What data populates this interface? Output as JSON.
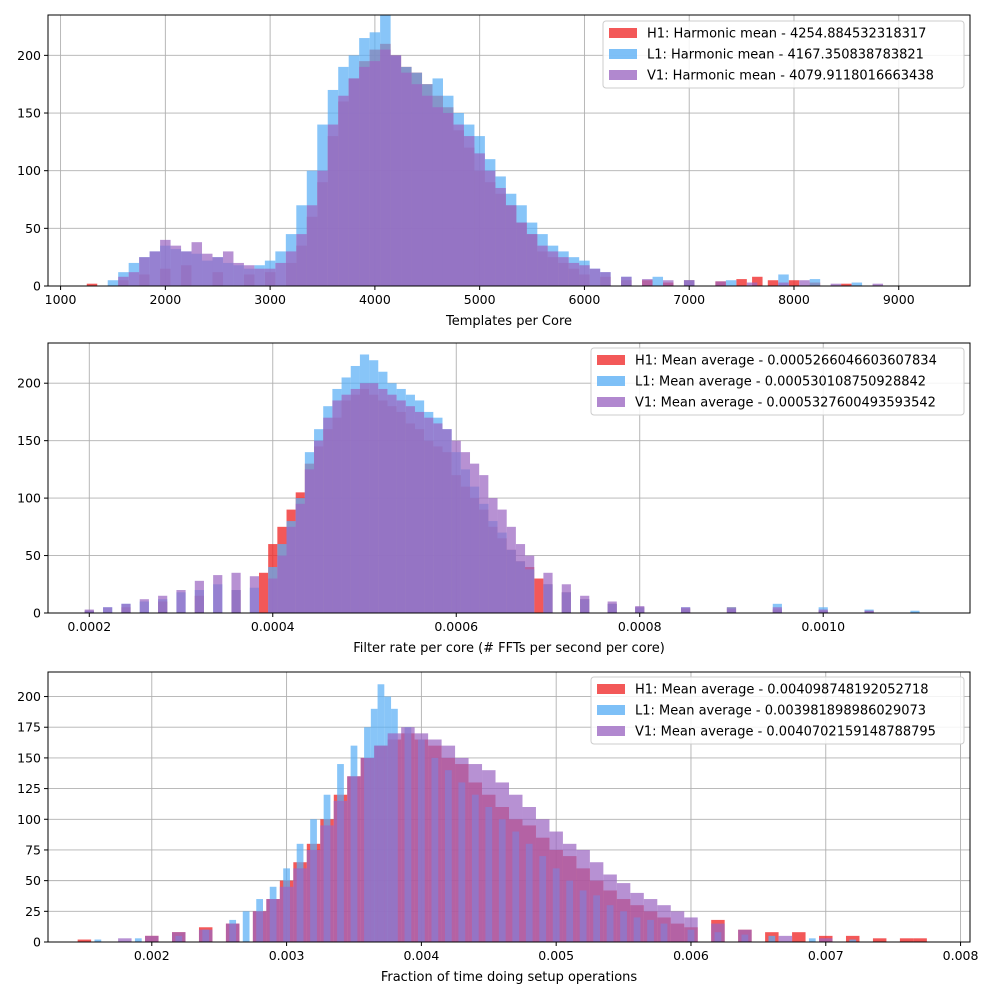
{
  "colors": {
    "H1": "#ef2929",
    "L1": "#5aaef5",
    "V1": "#9b67c2",
    "grid": "#b0b0b0"
  },
  "chart_data": [
    {
      "type": "bar",
      "title": "",
      "xlabel": "Templates per Core",
      "ylabel": "",
      "xlim": [
        880,
        9680
      ],
      "ylim": [
        0,
        235
      ],
      "xticks": [
        1000,
        2000,
        3000,
        4000,
        5000,
        6000,
        7000,
        8000,
        9000
      ],
      "yticks": [
        0,
        50,
        100,
        150,
        200
      ],
      "grid": true,
      "legend_position": "top-right",
      "series": [
        {
          "name": "H1: Harmonic mean  - 4254.884532318317",
          "color": "#ef2929",
          "x": [
            1300,
            1600,
            1800,
            2000,
            2200,
            2500,
            2800,
            3000,
            3200,
            3300,
            3400,
            3500,
            3600,
            3700,
            3800,
            3900,
            4000,
            4100,
            4200,
            4300,
            4400,
            4500,
            4600,
            4700,
            4800,
            4900,
            5000,
            5100,
            5200,
            5300,
            5400,
            5500,
            5600,
            5700,
            5800,
            5900,
            6000,
            6200,
            6400,
            6600,
            6800,
            7000,
            7300,
            7500,
            7650,
            7800,
            8000,
            8200,
            8500
          ],
          "values": [
            2,
            5,
            10,
            15,
            18,
            12,
            10,
            12,
            20,
            35,
            60,
            90,
            130,
            160,
            180,
            195,
            205,
            210,
            200,
            190,
            185,
            175,
            165,
            155,
            135,
            120,
            100,
            90,
            80,
            70,
            55,
            45,
            30,
            25,
            20,
            15,
            10,
            8,
            5,
            5,
            3,
            5,
            4,
            6,
            8,
            5,
            5,
            3,
            2
          ]
        },
        {
          "name": "L1: Harmonic mean  - 4167.350838783821",
          "color": "#5aaef5",
          "x": [
            1500,
            1600,
            1700,
            1800,
            1900,
            2000,
            2100,
            2200,
            2300,
            2400,
            2500,
            2600,
            2700,
            2800,
            2900,
            3000,
            3100,
            3200,
            3300,
            3400,
            3500,
            3600,
            3700,
            3800,
            3900,
            4000,
            4100,
            4200,
            4300,
            4400,
            4500,
            4600,
            4700,
            4800,
            4900,
            5000,
            5100,
            5200,
            5300,
            5400,
            5500,
            5600,
            5700,
            5800,
            5900,
            6000,
            6100,
            6200,
            6400,
            6700,
            7000,
            7400,
            7900,
            8200,
            8600
          ],
          "values": [
            5,
            12,
            20,
            25,
            30,
            35,
            32,
            30,
            28,
            22,
            25,
            20,
            18,
            15,
            18,
            22,
            30,
            45,
            70,
            100,
            140,
            170,
            190,
            200,
            215,
            220,
            235,
            200,
            190,
            185,
            175,
            180,
            165,
            150,
            140,
            130,
            110,
            95,
            80,
            70,
            55,
            45,
            35,
            30,
            25,
            22,
            15,
            12,
            8,
            8,
            5,
            5,
            10,
            6,
            3
          ]
        },
        {
          "name": "V1: Harmonic mean  - 4079.9118016663438",
          "color": "#9b67c2",
          "x": [
            1600,
            1700,
            1800,
            1900,
            2000,
            2100,
            2200,
            2300,
            2400,
            2500,
            2600,
            2700,
            2800,
            2900,
            3000,
            3100,
            3200,
            3300,
            3400,
            3500,
            3600,
            3700,
            3800,
            3900,
            4000,
            4100,
            4200,
            4300,
            4400,
            4500,
            4600,
            4700,
            4800,
            4900,
            5000,
            5100,
            5200,
            5300,
            5400,
            5500,
            5600,
            5700,
            5800,
            5900,
            6000,
            6100,
            6200,
            6400,
            6600,
            6800,
            7000,
            7300,
            7600,
            7900,
            8100,
            8400,
            8800
          ],
          "values": [
            8,
            12,
            25,
            30,
            40,
            35,
            30,
            38,
            28,
            25,
            30,
            20,
            18,
            15,
            15,
            20,
            30,
            45,
            70,
            100,
            140,
            165,
            180,
            190,
            195,
            205,
            200,
            185,
            175,
            165,
            155,
            150,
            140,
            130,
            115,
            100,
            85,
            70,
            55,
            45,
            35,
            30,
            25,
            20,
            18,
            15,
            12,
            8,
            6,
            5,
            5,
            4,
            3,
            3,
            5,
            2,
            2
          ]
        }
      ]
    },
    {
      "type": "bar",
      "title": "",
      "xlabel": "Filter rate per core (# FFTs per second per core)",
      "ylabel": "",
      "xlim": [
        0.000155,
        0.00116
      ],
      "ylim": [
        0,
        235
      ],
      "xticks": [
        0.0002,
        0.0004,
        0.0006,
        0.0008,
        0.001
      ],
      "xticklabels": [
        "0.0002",
        "0.0004",
        "0.0006",
        "0.0008",
        "0.0010"
      ],
      "yticks": [
        0,
        50,
        100,
        150,
        200
      ],
      "grid": true,
      "legend_position": "top-right",
      "series": [
        {
          "name": "H1: Mean average - 0.0005266046603607834",
          "color": "#ef2929",
          "x": [
            0.0002,
            0.00024,
            0.00028,
            0.00032,
            0.00036,
            0.00039,
            0.0004,
            0.00041,
            0.00042,
            0.00043,
            0.00044,
            0.00045,
            0.00046,
            0.00047,
            0.00048,
            0.00049,
            0.0005,
            0.00051,
            0.00052,
            0.00053,
            0.00054,
            0.00055,
            0.00056,
            0.00057,
            0.00058,
            0.00059,
            0.0006,
            0.00061,
            0.00062,
            0.00063,
            0.00064,
            0.00065,
            0.00066,
            0.00067,
            0.00068,
            0.00069,
            0.0007,
            0.00072,
            0.00074,
            0.00077,
            0.0008,
            0.00085,
            0.0009,
            0.00095,
            0.001,
            0.00105
          ],
          "values": [
            2,
            5,
            10,
            15,
            20,
            35,
            60,
            75,
            90,
            105,
            130,
            145,
            160,
            170,
            185,
            190,
            195,
            190,
            185,
            180,
            175,
            165,
            160,
            150,
            145,
            140,
            120,
            110,
            100,
            90,
            75,
            65,
            55,
            45,
            40,
            30,
            25,
            18,
            12,
            8,
            5,
            4,
            5,
            3,
            2,
            2
          ]
        },
        {
          "name": "L1: Mean average - 0.000530108750928842",
          "color": "#5aaef5",
          "x": [
            0.0002,
            0.00022,
            0.00024,
            0.00026,
            0.00028,
            0.0003,
            0.00032,
            0.00034,
            0.00036,
            0.00038,
            0.0004,
            0.00041,
            0.00042,
            0.00043,
            0.00044,
            0.00045,
            0.00046,
            0.00047,
            0.00048,
            0.00049,
            0.0005,
            0.00051,
            0.00052,
            0.00053,
            0.00054,
            0.00055,
            0.00056,
            0.00057,
            0.00058,
            0.00059,
            0.0006,
            0.00061,
            0.00062,
            0.00063,
            0.00064,
            0.00065,
            0.00066,
            0.00067,
            0.00068,
            0.0007,
            0.00072,
            0.00074,
            0.00077,
            0.0008,
            0.00085,
            0.0009,
            0.00095,
            0.001,
            0.00105,
            0.0011
          ],
          "values": [
            2,
            5,
            8,
            10,
            12,
            18,
            20,
            25,
            20,
            22,
            40,
            60,
            80,
            100,
            140,
            160,
            180,
            195,
            205,
            215,
            225,
            220,
            210,
            200,
            195,
            190,
            185,
            175,
            170,
            160,
            140,
            125,
            110,
            95,
            80,
            70,
            55,
            45,
            38,
            25,
            18,
            12,
            8,
            5,
            5,
            5,
            8,
            5,
            3,
            2
          ]
        },
        {
          "name": "V1: Mean average - 0.0005327600493593542",
          "color": "#9b67c2",
          "x": [
            0.0002,
            0.00022,
            0.00024,
            0.00026,
            0.00028,
            0.0003,
            0.00032,
            0.00034,
            0.00036,
            0.00038,
            0.0004,
            0.00041,
            0.00042,
            0.00043,
            0.00044,
            0.00045,
            0.00046,
            0.00047,
            0.00048,
            0.00049,
            0.0005,
            0.00051,
            0.00052,
            0.00053,
            0.00054,
            0.00055,
            0.00056,
            0.00057,
            0.00058,
            0.00059,
            0.0006,
            0.00061,
            0.00062,
            0.00063,
            0.00064,
            0.00065,
            0.00066,
            0.00067,
            0.00068,
            0.0007,
            0.00072,
            0.00074,
            0.00077,
            0.0008,
            0.00085,
            0.0009,
            0.00095,
            0.001,
            0.00105
          ],
          "values": [
            3,
            5,
            8,
            12,
            15,
            20,
            28,
            33,
            35,
            32,
            30,
            50,
            75,
            95,
            125,
            150,
            170,
            185,
            190,
            195,
            200,
            200,
            195,
            190,
            185,
            180,
            175,
            170,
            165,
            160,
            150,
            140,
            130,
            120,
            100,
            90,
            75,
            60,
            50,
            35,
            25,
            15,
            10,
            6,
            5,
            4,
            5,
            3,
            2
          ]
        }
      ]
    },
    {
      "type": "bar",
      "title": "",
      "xlabel": "Fraction of time doing setup operations",
      "ylabel": "",
      "xlim": [
        0.00123,
        0.00807
      ],
      "ylim": [
        0,
        220
      ],
      "xticks": [
        0.002,
        0.003,
        0.004,
        0.005,
        0.006,
        0.007,
        0.008
      ],
      "xticklabels": [
        "0.002",
        "0.003",
        "0.004",
        "0.005",
        "0.006",
        "0.007",
        "0.008"
      ],
      "yticks": [
        0,
        25,
        50,
        75,
        100,
        125,
        150,
        175,
        200
      ],
      "grid": true,
      "legend_position": "top-right",
      "series": [
        {
          "name": "H1: Mean average - 0.004098748192052718",
          "color": "#ef2929",
          "x": [
            0.0015,
            0.002,
            0.0022,
            0.0024,
            0.0026,
            0.0028,
            0.0029,
            0.003,
            0.0031,
            0.0032,
            0.0033,
            0.0034,
            0.0035,
            0.0036,
            0.0037,
            0.0038,
            0.0039,
            0.004,
            0.0041,
            0.0042,
            0.0043,
            0.0044,
            0.0045,
            0.0046,
            0.0047,
            0.0048,
            0.0049,
            0.005,
            0.0051,
            0.0052,
            0.0053,
            0.0054,
            0.0055,
            0.0056,
            0.0057,
            0.0058,
            0.0059,
            0.006,
            0.0062,
            0.0064,
            0.0066,
            0.0068,
            0.007,
            0.0072,
            0.0074,
            0.0076,
            0.0077
          ],
          "values": [
            2,
            5,
            8,
            12,
            15,
            25,
            35,
            50,
            65,
            80,
            100,
            120,
            135,
            150,
            160,
            165,
            170,
            165,
            160,
            150,
            145,
            130,
            120,
            110,
            100,
            95,
            85,
            75,
            70,
            60,
            50,
            42,
            35,
            30,
            25,
            20,
            15,
            12,
            18,
            10,
            8,
            8,
            5,
            5,
            3,
            3,
            3
          ]
        },
        {
          "name": "L1: Mean average - 0.003981898986029073",
          "color": "#5aaef5",
          "x": [
            0.0016,
            0.0019,
            0.0022,
            0.0024,
            0.0026,
            0.0027,
            0.0028,
            0.0029,
            0.003,
            0.0031,
            0.0032,
            0.0033,
            0.0034,
            0.0035,
            0.0036,
            0.00365,
            0.0037,
            0.00375,
            0.0038,
            0.0039,
            0.004,
            0.0041,
            0.0042,
            0.0043,
            0.0044,
            0.0045,
            0.0046,
            0.0047,
            0.0048,
            0.0049,
            0.005,
            0.0051,
            0.0052,
            0.0053,
            0.0054,
            0.0055,
            0.0056,
            0.0057,
            0.0058,
            0.006,
            0.0062,
            0.0064,
            0.0066,
            0.0069,
            0.0072
          ],
          "values": [
            2,
            3,
            5,
            10,
            18,
            25,
            35,
            45,
            60,
            80,
            100,
            120,
            145,
            160,
            175,
            190,
            210,
            200,
            190,
            175,
            165,
            150,
            140,
            130,
            120,
            110,
            100,
            90,
            80,
            70,
            60,
            50,
            42,
            38,
            30,
            25,
            20,
            18,
            15,
            10,
            8,
            6,
            5,
            3,
            2
          ]
        },
        {
          "name": "V1: Mean average - 0.0040702159148788795",
          "color": "#9b67c2",
          "x": [
            0.0018,
            0.002,
            0.0022,
            0.0024,
            0.0026,
            0.0028,
            0.0029,
            0.003,
            0.0031,
            0.0032,
            0.0033,
            0.0034,
            0.0035,
            0.0036,
            0.0037,
            0.0038,
            0.0039,
            0.004,
            0.0041,
            0.0042,
            0.0043,
            0.0044,
            0.0045,
            0.0046,
            0.0047,
            0.0048,
            0.0049,
            0.005,
            0.0051,
            0.0052,
            0.0053,
            0.0054,
            0.0055,
            0.0056,
            0.0057,
            0.0058,
            0.0059,
            0.006,
            0.0062,
            0.0064,
            0.0067,
            0.007
          ],
          "values": [
            3,
            5,
            8,
            10,
            15,
            25,
            35,
            45,
            60,
            75,
            95,
            115,
            135,
            150,
            160,
            170,
            175,
            170,
            165,
            160,
            150,
            145,
            140,
            130,
            120,
            110,
            100,
            90,
            80,
            75,
            65,
            55,
            48,
            40,
            35,
            30,
            25,
            20,
            15,
            10,
            5,
            3
          ]
        }
      ]
    }
  ]
}
